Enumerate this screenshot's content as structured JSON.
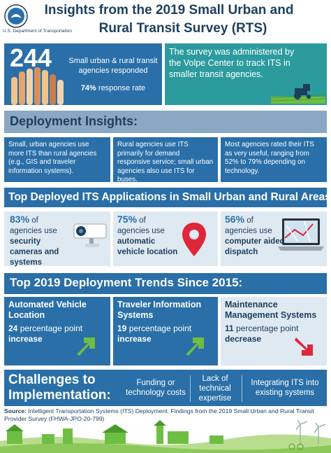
{
  "header": {
    "title_line1": "Insights from the 2019 Small Urban and",
    "title_line2": "Rural Transit Survey (RTS)",
    "agency": "U.S. Department of Transportation"
  },
  "stats": {
    "count": "244",
    "count_label": "Small urban & rural transit agencies responded",
    "response_pct": "74%",
    "response_label": "response rate",
    "survey_note": "The survey was administered by the Volpe Center to track ITS in smaller transit agencies."
  },
  "deployment": {
    "heading": "Deployment Insights:",
    "items": [
      "Small, urban agencies use more ITS than rural agencies (e.g., GIS and traveler information systems).",
      "Rural agencies use ITS primarily for demand responsive service; small urban agencies also use ITS for buses.",
      "Most agencies rated their ITS as very useful, ranging from 52% to 79% depending on technology."
    ]
  },
  "top_apps": {
    "heading": "Top Deployed ITS Applications in Small Urban and Rural Areas:",
    "items": [
      {
        "pct": "83%",
        "prefix": "of agencies use",
        "name": "security cameras and systems",
        "icon": "security-camera-icon"
      },
      {
        "pct": "75%",
        "prefix": "of agencies use",
        "name": "automatic vehicle location",
        "icon": "location-pin-icon"
      },
      {
        "pct": "56%",
        "prefix": "of agencies use",
        "name": "computer aided dispatch",
        "icon": "laptop-map-icon"
      }
    ]
  },
  "trends": {
    "heading": "Top 2019 Deployment Trends Since 2015:",
    "items": [
      {
        "title": "Automated Vehicle Location",
        "amount": "24",
        "unit": "percentage point",
        "direction": "increase"
      },
      {
        "title": "Traveler Information Systems",
        "amount": "19",
        "unit": "percentage point",
        "direction": "increase"
      },
      {
        "title": "Maintenance Management Systems",
        "amount": "11",
        "unit": "percentage point",
        "direction": "decrease"
      }
    ]
  },
  "challenges": {
    "heading": "Challenges to Implementation:",
    "items": [
      "Funding or technology costs",
      "Lack of technical expertise",
      "Integrating ITS into existing systems"
    ]
  },
  "source": {
    "label": "Source:",
    "text": "Intelligent Transportation Systems (ITS) Deployment: Findings from the 2019 Small Urban and Rural Transit Provider Survey (FHWA-JPO-20-799)"
  },
  "colors": {
    "navy": "#1d3f5e",
    "blue": "#2a6fa8",
    "teal": "#2c9b9d",
    "light": "#dfe9f1",
    "green": "#6fbe44",
    "red": "#e0263a"
  }
}
